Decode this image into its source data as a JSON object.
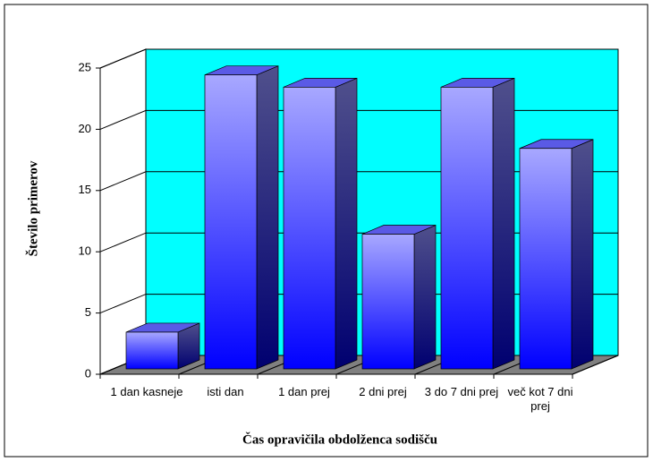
{
  "chart_data": {
    "type": "bar3d",
    "x_label": "Čas opravičila obdolženca sodišču",
    "y_label": "Število primerov",
    "categories": [
      "1 dan kasneje",
      "isti dan",
      "1 dan prej",
      "2 dni prej",
      "3 do 7 dni prej",
      "več kot 7 dni prej"
    ],
    "values": [
      3,
      24,
      23,
      11,
      23,
      18
    ],
    "color": "#3c3cff",
    "ylim": [
      0,
      25
    ],
    "yticks": [
      0,
      5,
      10,
      15,
      20,
      25
    ],
    "grid": true
  }
}
